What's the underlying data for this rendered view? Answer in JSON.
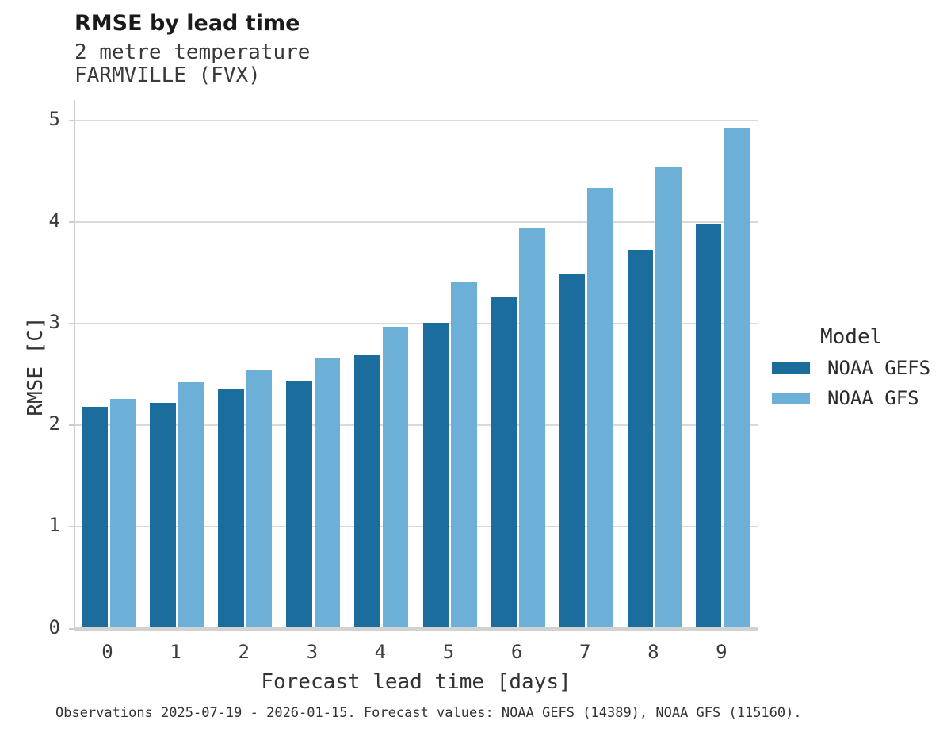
{
  "header": {
    "title": "RMSE by lead time",
    "subtitle_line1": "2 metre temperature",
    "subtitle_line2": "FARMVILLE (FVX)"
  },
  "legend": {
    "title": "Model",
    "items": [
      {
        "label": "NOAA GEFS",
        "color": "#1b6d9e"
      },
      {
        "label": "NOAA GFS",
        "color": "#6cb0d8"
      }
    ]
  },
  "footer": {
    "caption": "Observations 2025-07-19 - 2026-01-15. Forecast values: NOAA GEFS (14389), NOAA GFS (115160)."
  },
  "colors": {
    "grid": "#d9d9d9",
    "axis_spine": "#cccccc",
    "baseline": "#d2d2d2",
    "text": "#3a3a3a",
    "title_text": "#1a1a1a"
  },
  "chart_data": {
    "type": "bar",
    "title": "RMSE by lead time",
    "subtitle": [
      "2 metre temperature",
      "FARMVILLE (FVX)"
    ],
    "categories": [
      "0",
      "1",
      "2",
      "3",
      "4",
      "5",
      "6",
      "7",
      "8",
      "9"
    ],
    "series": [
      {
        "name": "NOAA GEFS",
        "color": "#1b6d9e",
        "values": [
          2.18,
          2.22,
          2.35,
          2.43,
          2.7,
          3.01,
          3.27,
          3.49,
          3.73,
          3.98
        ]
      },
      {
        "name": "NOAA GFS",
        "color": "#6cb0d8",
        "values": [
          2.26,
          2.42,
          2.54,
          2.66,
          2.97,
          3.41,
          3.94,
          4.34,
          4.54,
          4.92
        ]
      }
    ],
    "xlabel": "Forecast lead time [days]",
    "ylabel": "RMSE [C]",
    "ylim": [
      0,
      5
    ],
    "yticks": [
      0,
      1,
      2,
      3,
      4,
      5
    ],
    "grid": "horizontal",
    "legend_position": "right",
    "legend_title": "Model"
  }
}
